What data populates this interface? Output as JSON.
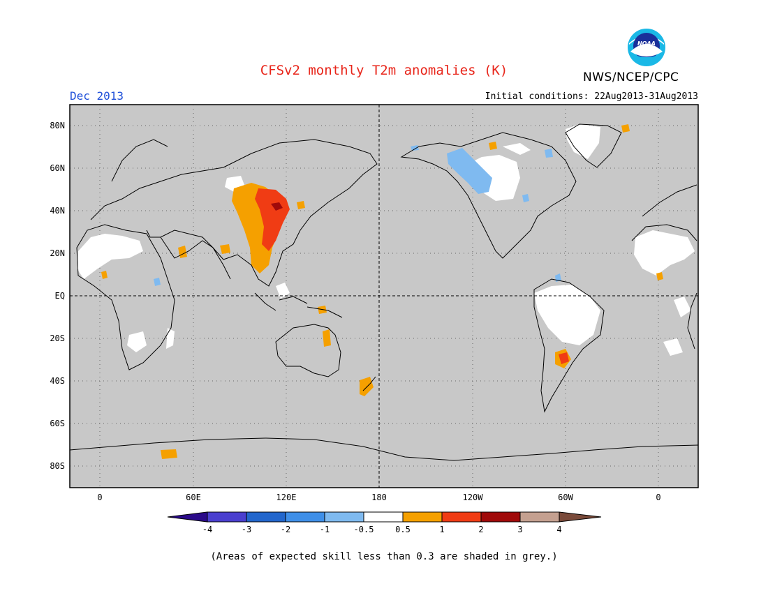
{
  "header": {
    "title": "CFSv2 monthly T2m anomalies (K)",
    "organization": "NWS/NCEP/CPC",
    "period": "Dec 2013",
    "initial_conditions": "Initial conditions: 22Aug2013-31Aug2013",
    "logo_text": "NOAA"
  },
  "colors": {
    "title": "#e8251a",
    "period": "#1e4fd9",
    "background_grey": "#c8c8c8",
    "land_white": "#ffffff"
  },
  "map": {
    "projection": "equirectangular",
    "lat_labels": [
      "80N",
      "60N",
      "40N",
      "20N",
      "EQ",
      "20S",
      "40S",
      "60S",
      "80S"
    ],
    "lon_labels": [
      "0",
      "60E",
      "120E",
      "180",
      "120W",
      "60W",
      "0"
    ],
    "equator_line": "dashed",
    "dateline": "dashed",
    "grid": "dotted"
  },
  "colorbar": {
    "ticks": [
      "-4",
      "-3",
      "-2",
      "-1",
      "-0.5",
      "0.5",
      "1",
      "2",
      "3",
      "4"
    ],
    "colors": [
      "#2b0a8a",
      "#4a3fcf",
      "#2266cc",
      "#3f8fe8",
      "#7fbaf0",
      "#ffffff",
      "#f5a000",
      "#f03c14",
      "#a00a0a",
      "#c4a090",
      "#7a4a3a"
    ]
  },
  "footnote": "(Areas of expected skill less than 0.3 are shaded in grey.)"
}
